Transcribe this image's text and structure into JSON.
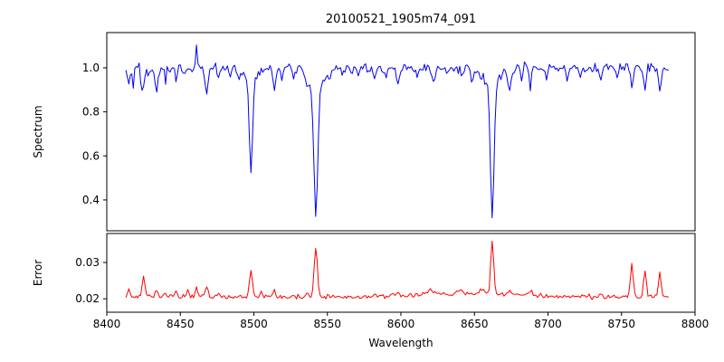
{
  "colors": {
    "background": "#ffffff",
    "axis": "#000000",
    "spectrum_line": "#0000ee",
    "error_line": "#ff0000"
  },
  "chart_data": {
    "type": "line",
    "title": "20100521_1905m74_091",
    "xlabel": "Wavelength",
    "x_range": [
      8400,
      8800
    ],
    "x_data_range": [
      8413,
      8782
    ],
    "sample_step": 1.0,
    "x_ticks": [
      8400,
      8450,
      8500,
      8550,
      8600,
      8650,
      8700,
      8750,
      8800
    ],
    "x_tick_labels": [
      "8400",
      "8450",
      "8500",
      "8550",
      "8600",
      "8650",
      "8700",
      "8750",
      "8800"
    ],
    "subplots": [
      {
        "name": "spectrum",
        "ylabel": "Spectrum",
        "ylim": [
          0.26,
          1.16
        ],
        "y_ticks": [
          0.4,
          0.6,
          0.8,
          1.0
        ],
        "y_tick_labels": [
          "0.4",
          "0.6",
          "0.8",
          "1.0"
        ],
        "color_key": "spectrum_line",
        "baseline": 1.0,
        "noise_sigma": 0.01,
        "noisy_left_edge": {
          "below_x": 8436,
          "sigma_factor": 1.8
        },
        "features_note": "absorption lines; negative depth = upward spike; Ca II triplet at 8498/8542/8662",
        "features": [
          {
            "center": 8415.0,
            "depth": 0.1,
            "sigma": 0.7
          },
          {
            "center": 8418.0,
            "depth": 0.07,
            "sigma": 0.6
          },
          {
            "center": 8424.0,
            "depth": 0.13,
            "sigma": 0.9
          },
          {
            "center": 8429.0,
            "depth": 0.05,
            "sigma": 0.7
          },
          {
            "center": 8434.0,
            "depth": 0.1,
            "sigma": 0.8
          },
          {
            "center": 8440.0,
            "depth": 0.06,
            "sigma": 0.7
          },
          {
            "center": 8447.0,
            "depth": 0.05,
            "sigma": 0.7
          },
          {
            "center": 8452.0,
            "depth": 0.04,
            "sigma": 0.7
          },
          {
            "center": 8461.0,
            "depth": -0.1,
            "sigma": 0.5
          },
          {
            "center": 8468.0,
            "depth": 0.13,
            "sigma": 0.9
          },
          {
            "center": 8476.0,
            "depth": 0.06,
            "sigma": 0.7
          },
          {
            "center": 8484.0,
            "depth": 0.04,
            "sigma": 0.7
          },
          {
            "center": 8490.0,
            "depth": 0.04,
            "sigma": 0.7
          },
          {
            "center": 8498.0,
            "depth": 0.42,
            "sigma": 1.1
          },
          {
            "center": 8498.0,
            "depth": 0.06,
            "sigma": 4.0
          },
          {
            "center": 8514.0,
            "depth": 0.11,
            "sigma": 0.9
          },
          {
            "center": 8519.0,
            "depth": 0.05,
            "sigma": 0.7
          },
          {
            "center": 8527.0,
            "depth": 0.04,
            "sigma": 0.7
          },
          {
            "center": 8536.0,
            "depth": 0.04,
            "sigma": 0.8
          },
          {
            "center": 8542.1,
            "depth": 0.58,
            "sigma": 1.3
          },
          {
            "center": 8542.1,
            "depth": 0.09,
            "sigma": 5.0
          },
          {
            "center": 8552.0,
            "depth": 0.04,
            "sigma": 0.8
          },
          {
            "center": 8560.0,
            "depth": 0.03,
            "sigma": 0.7
          },
          {
            "center": 8571.0,
            "depth": 0.03,
            "sigma": 0.7
          },
          {
            "center": 8582.0,
            "depth": 0.06,
            "sigma": 0.8
          },
          {
            "center": 8590.0,
            "depth": 0.04,
            "sigma": 0.7
          },
          {
            "center": 8598.0,
            "depth": 0.08,
            "sigma": 0.9
          },
          {
            "center": 8611.0,
            "depth": 0.05,
            "sigma": 0.8
          },
          {
            "center": 8622.0,
            "depth": 0.07,
            "sigma": 0.9
          },
          {
            "center": 8632.0,
            "depth": 0.04,
            "sigma": 0.7
          },
          {
            "center": 8642.0,
            "depth": 0.04,
            "sigma": 0.7
          },
          {
            "center": 8648.0,
            "depth": 0.06,
            "sigma": 0.8
          },
          {
            "center": 8662.1,
            "depth": 0.58,
            "sigma": 1.2
          },
          {
            "center": 8662.1,
            "depth": 0.09,
            "sigma": 5.0
          },
          {
            "center": 8674.0,
            "depth": 0.11,
            "sigma": 0.9
          },
          {
            "center": 8682.0,
            "depth": 0.05,
            "sigma": 0.7
          },
          {
            "center": 8688.0,
            "depth": 0.09,
            "sigma": 0.8
          },
          {
            "center": 8699.0,
            "depth": 0.04,
            "sigma": 0.7
          },
          {
            "center": 8713.0,
            "depth": 0.05,
            "sigma": 0.8
          },
          {
            "center": 8722.0,
            "depth": 0.04,
            "sigma": 0.7
          },
          {
            "center": 8736.0,
            "depth": 0.06,
            "sigma": 0.8
          },
          {
            "center": 8747.0,
            "depth": 0.05,
            "sigma": 0.7
          },
          {
            "center": 8757.0,
            "depth": 0.09,
            "sigma": 0.8
          },
          {
            "center": 8766.0,
            "depth": 0.1,
            "sigma": 0.8
          },
          {
            "center": 8776.0,
            "depth": 0.11,
            "sigma": 0.9
          }
        ]
      },
      {
        "name": "error",
        "ylabel": "Error",
        "ylim": [
          0.0163,
          0.038
        ],
        "y_ticks": [
          0.02,
          0.03
        ],
        "y_tick_labels": [
          "0.02",
          "0.03"
        ],
        "color_key": "error_line",
        "baseline": 0.0205,
        "noise_sigma": 0.0003,
        "features_note": "error spikes coincide with absorption lines",
        "features": [
          {
            "center": 8415.0,
            "depth": -0.002,
            "sigma": 0.9
          },
          {
            "center": 8425.0,
            "depth": -0.0055,
            "sigma": 0.9
          },
          {
            "center": 8434.0,
            "depth": -0.002,
            "sigma": 0.8
          },
          {
            "center": 8440.0,
            "depth": -0.0012,
            "sigma": 0.7
          },
          {
            "center": 8447.0,
            "depth": -0.0015,
            "sigma": 0.8
          },
          {
            "center": 8455.0,
            "depth": -0.0018,
            "sigma": 0.8
          },
          {
            "center": 8461.0,
            "depth": -0.003,
            "sigma": 0.7
          },
          {
            "center": 8468.0,
            "depth": -0.0032,
            "sigma": 0.9
          },
          {
            "center": 8476.0,
            "depth": -0.0013,
            "sigma": 0.8
          },
          {
            "center": 8498.0,
            "depth": -0.007,
            "sigma": 1.0
          },
          {
            "center": 8505.0,
            "depth": -0.0015,
            "sigma": 0.8
          },
          {
            "center": 8514.0,
            "depth": -0.0022,
            "sigma": 0.8
          },
          {
            "center": 8536.0,
            "depth": -0.001,
            "sigma": 0.8
          },
          {
            "center": 8542.1,
            "depth": -0.0135,
            "sigma": 1.1
          },
          {
            "center": 8582.0,
            "depth": -0.0008,
            "sigma": 0.8
          },
          {
            "center": 8598.0,
            "depth": -0.001,
            "sigma": 0.8
          },
          {
            "center": 8620.0,
            "depth": -0.0012,
            "sigma": 3.0
          },
          {
            "center": 8640.0,
            "depth": -0.001,
            "sigma": 2.5
          },
          {
            "center": 8650.0,
            "depth": -0.0008,
            "sigma": 40.0
          },
          {
            "center": 8655.0,
            "depth": -0.0012,
            "sigma": 2.0
          },
          {
            "center": 8662.1,
            "depth": -0.0145,
            "sigma": 1.0
          },
          {
            "center": 8674.0,
            "depth": -0.0018,
            "sigma": 0.8
          },
          {
            "center": 8688.0,
            "depth": -0.0012,
            "sigma": 0.8
          },
          {
            "center": 8736.0,
            "depth": -0.0008,
            "sigma": 0.8
          },
          {
            "center": 8757.0,
            "depth": -0.0095,
            "sigma": 0.9
          },
          {
            "center": 8766.0,
            "depth": -0.0072,
            "sigma": 0.9
          },
          {
            "center": 8776.0,
            "depth": -0.0062,
            "sigma": 0.9
          }
        ]
      }
    ]
  }
}
